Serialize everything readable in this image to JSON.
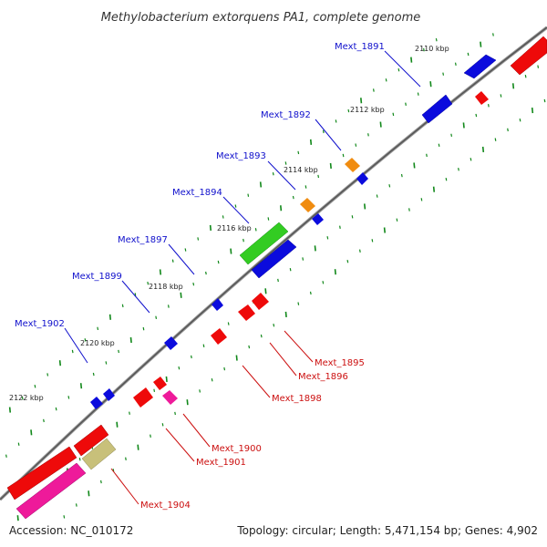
{
  "title": "Methylobacterium extorquens PA1, complete genome",
  "footer": {
    "accession": "Accession: NC_010172",
    "summary": "Topology: circular; Length: 5,471,154 bp; Genes: 4,902"
  },
  "scale_labels": [
    "2110 kbp",
    "2112 kbp",
    "2114 kbp",
    "2116 kbp",
    "2118 kbp",
    "2120 kbp",
    "2122 kbp"
  ],
  "genes_forward": [
    "Mext_1891",
    "Mext_1892",
    "Mext_1893",
    "Mext_1894",
    "Mext_1897",
    "Mext_1899",
    "Mext_1902"
  ],
  "genes_reverse": [
    "Mext_1895",
    "Mext_1896",
    "Mext_1898",
    "Mext_1900",
    "Mext_1901",
    "Mext_1904"
  ],
  "colors": {
    "forward_label": "#1010cc",
    "reverse_label": "#cc1010",
    "blue_gene": "#0b0bdd",
    "red_gene": "#ee0a0a",
    "orange_gene": "#f08c10",
    "green_gene": "#33cc22",
    "magenta_gene": "#ee1a9a",
    "khaki_gene": "#c8c07a",
    "backbone": "#888888",
    "tick": "#11881a"
  }
}
